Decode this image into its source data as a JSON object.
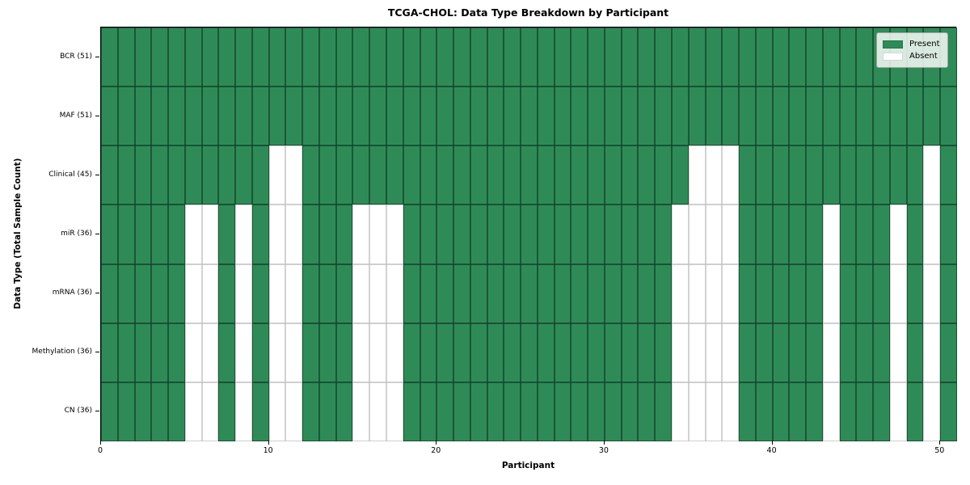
{
  "chart_data": {
    "type": "heatmap",
    "title": "TCGA-CHOL: Data Type Breakdown by Participant",
    "xlabel": "Participant",
    "ylabel": "Data Type (Total Sample Count)",
    "n_participants": 51,
    "x_range": [
      0,
      51
    ],
    "x_ticks": [
      0,
      10,
      20,
      30,
      40,
      50
    ],
    "grid": "cell-borders",
    "value_meaning": {
      "present": "Present",
      "absent": "Absent"
    },
    "rows": [
      {
        "label": "BCR (51)",
        "data_type": "BCR",
        "present_count": 51,
        "absent_participants": []
      },
      {
        "label": "MAF (51)",
        "data_type": "MAF",
        "present_count": 51,
        "absent_participants": []
      },
      {
        "label": "Clinical (45)",
        "data_type": "Clinical",
        "present_count": 45,
        "absent_participants": [
          10,
          11,
          35,
          36,
          37,
          49
        ]
      },
      {
        "label": "miR (36)",
        "data_type": "miR",
        "present_count": 36,
        "absent_participants": [
          5,
          6,
          8,
          10,
          11,
          15,
          16,
          17,
          34,
          35,
          36,
          37,
          43,
          47,
          49
        ]
      },
      {
        "label": "mRNA (36)",
        "data_type": "mRNA",
        "present_count": 36,
        "absent_participants": [
          5,
          6,
          8,
          10,
          11,
          15,
          16,
          17,
          34,
          35,
          36,
          37,
          43,
          47,
          49
        ]
      },
      {
        "label": "Methylation (36)",
        "data_type": "Methylation",
        "present_count": 36,
        "absent_participants": [
          5,
          6,
          8,
          10,
          11,
          15,
          16,
          17,
          34,
          35,
          36,
          37,
          43,
          47,
          49
        ]
      },
      {
        "label": "CN (36)",
        "data_type": "CN",
        "present_count": 36,
        "absent_participants": [
          5,
          6,
          8,
          10,
          11,
          15,
          16,
          17,
          34,
          35,
          36,
          37,
          43,
          47,
          49
        ]
      }
    ],
    "legend": {
      "position": "upper right",
      "entries": [
        {
          "label": "Present",
          "color": "#2e8b57"
        },
        {
          "label": "Absent",
          "color": "#ffffff"
        }
      ]
    },
    "colors": {
      "present": "#2e8b57",
      "absent": "#ffffff",
      "spine": "#000000"
    }
  }
}
